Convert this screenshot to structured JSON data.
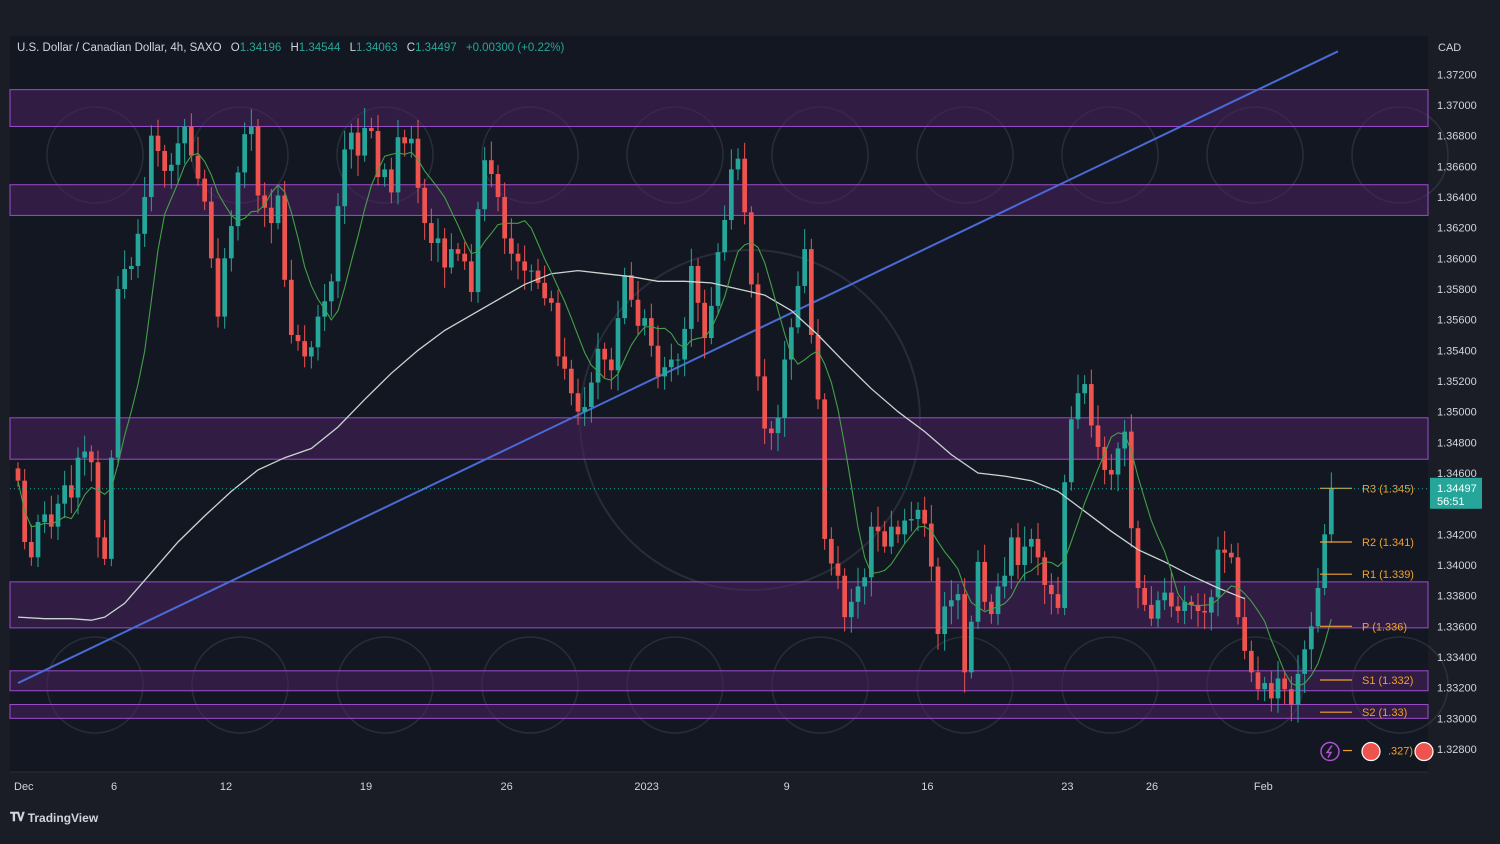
{
  "header": {
    "symbol": "U.S. Dollar / Canadian Dollar, 4h, SAXO",
    "o_label": "O",
    "o": "1.34196",
    "h_label": "H",
    "h": "1.34544",
    "l_label": "L",
    "l": "1.34063",
    "c_label": "C",
    "c": "1.34497",
    "change": "+0.00300 (+0.22%)"
  },
  "brand": "TradingView",
  "currency": "CAD",
  "price_tag": {
    "price": "1.34497",
    "countdown": "56:51"
  },
  "colors": {
    "background": "#1a1d26",
    "up": "#26a69a",
    "down": "#ef5350",
    "zone_fill": "#4a2060",
    "zone_stroke": "#9c4dcc",
    "trendline": "#4a6bd6",
    "ma_fast": "#43a047",
    "ma_slow": "#c8d6cf",
    "pivot": "#f0a030"
  },
  "chart_data": {
    "type": "candlestick",
    "title": "U.S. Dollar / Canadian Dollar, 4h, SAXO",
    "ylim": [
      1.3265,
      1.3745
    ],
    "y_ticks": [
      "1.37200",
      "1.37000",
      "1.36800",
      "1.36600",
      "1.36400",
      "1.36200",
      "1.36000",
      "1.35800",
      "1.35600",
      "1.35400",
      "1.35200",
      "1.35000",
      "1.34800",
      "1.34600",
      "1.34200",
      "1.34000",
      "1.33800",
      "1.33600",
      "1.33400",
      "1.33200",
      "1.33000",
      "1.32800"
    ],
    "x_ticks": [
      {
        "label": "Dec",
        "x": 0
      },
      {
        "label": "6",
        "x": 14.4
      },
      {
        "label": "12",
        "x": 31.2
      },
      {
        "label": "19",
        "x": 52.2
      },
      {
        "label": "26",
        "x": 73.3
      },
      {
        "label": "2023",
        "x": 94.3
      },
      {
        "label": "9",
        "x": 115.3
      },
      {
        "label": "16",
        "x": 136.4
      },
      {
        "label": "23",
        "x": 157.4
      },
      {
        "label": "26",
        "x": 170.1
      },
      {
        "label": "Feb",
        "x": 186.8
      }
    ],
    "x_range": [
      0,
      198
    ],
    "closes": [
      1.3455,
      1.3415,
      1.3405,
      1.3428,
      1.3433,
      1.3425,
      1.344,
      1.3452,
      1.3444,
      1.347,
      1.3474,
      1.3467,
      1.3418,
      1.3404,
      1.347,
      1.358,
      1.3593,
      1.3595,
      1.3616,
      1.364,
      1.368,
      1.367,
      1.3657,
      1.3661,
      1.3675,
      1.3686,
      1.3667,
      1.3652,
      1.3637,
      1.36,
      1.3562,
      1.36,
      1.3621,
      1.3656,
      1.3681,
      1.3686,
      1.3641,
      1.3633,
      1.3623,
      1.3641,
      1.3586,
      1.355,
      1.3546,
      1.3536,
      1.3542,
      1.3562,
      1.3572,
      1.3585,
      1.3634,
      1.3671,
      1.3682,
      1.3667,
      1.3685,
      1.3683,
      1.3653,
      1.3658,
      1.3643,
      1.3679,
      1.3675,
      1.3678,
      1.3646,
      1.3623,
      1.361,
      1.3613,
      1.3594,
      1.3606,
      1.3603,
      1.3598,
      1.3578,
      1.3632,
      1.3664,
      1.3655,
      1.364,
      1.3613,
      1.3603,
      1.3598,
      1.3592,
      1.3592,
      1.3584,
      1.3574,
      1.3571,
      1.3536,
      1.3528,
      1.3512,
      1.35,
      1.3503,
      1.3519,
      1.3541,
      1.3534,
      1.3527,
      1.3561,
      1.3589,
      1.3573,
      1.3556,
      1.3561,
      1.3543,
      1.3523,
      1.3529,
      1.3534,
      1.3534,
      1.3554,
      1.3595,
      1.3571,
      1.3548,
      1.3569,
      1.3604,
      1.3625,
      1.3658,
      1.3665,
      1.363,
      1.3583,
      1.3523,
      1.3489,
      1.3486,
      1.3496,
      1.3534,
      1.3555,
      1.3582,
      1.3606,
      1.355,
      1.3508,
      1.3417,
      1.3401,
      1.3393,
      1.3366,
      1.3376,
      1.3386,
      1.3392,
      1.3425,
      1.3422,
      1.3412,
      1.3425,
      1.342,
      1.3429,
      1.343,
      1.3436,
      1.3427,
      1.3399,
      1.3355,
      1.3373,
      1.3377,
      1.3381,
      1.333,
      1.3363,
      1.3402,
      1.3376,
      1.3368,
      1.3386,
      1.3393,
      1.3418,
      1.34,
      1.3412,
      1.3417,
      1.3405,
      1.3387,
      1.3381,
      1.3372,
      1.3454,
      1.3495,
      1.3512,
      1.3518,
      1.3491,
      1.3477,
      1.3462,
      1.3459,
      1.3476,
      1.3487,
      1.3424,
      1.3385,
      1.3374,
      1.3365,
      1.3377,
      1.3382,
      1.3373,
      1.337,
      1.3376,
      1.3374,
      1.337,
      1.3369,
      1.3379,
      1.341,
      1.3408,
      1.3405,
      1.3366,
      1.3344,
      1.333,
      1.3319,
      1.3323,
      1.3313,
      1.3326,
      1.3319,
      1.3309,
      1.3329,
      1.3345,
      1.336,
      1.3385,
      1.342,
      1.345
    ],
    "zones": [
      [
        1.3686,
        1.371
      ],
      [
        1.3628,
        1.3648
      ],
      [
        1.3469,
        1.3496
      ],
      [
        1.3359,
        1.3389
      ],
      [
        1.3318,
        1.3331
      ],
      [
        1.33,
        1.3309
      ]
    ],
    "trendline": {
      "from": [
        0,
        1.3323
      ],
      "to": [
        198,
        1.3735
      ]
    },
    "ma_slow": [
      [
        0,
        1.3366
      ],
      [
        4,
        1.3365
      ],
      [
        8,
        1.3365
      ],
      [
        11,
        1.3364
      ],
      [
        13,
        1.3366
      ],
      [
        16,
        1.3375
      ],
      [
        20,
        1.3395
      ],
      [
        24,
        1.3415
      ],
      [
        28,
        1.3432
      ],
      [
        32,
        1.3448
      ],
      [
        36,
        1.3462
      ],
      [
        40,
        1.347
      ],
      [
        44,
        1.3476
      ],
      [
        48,
        1.349
      ],
      [
        52,
        1.3508
      ],
      [
        56,
        1.3525
      ],
      [
        60,
        1.354
      ],
      [
        64,
        1.3553
      ],
      [
        68,
        1.3563
      ],
      [
        72,
        1.3573
      ],
      [
        76,
        1.3583
      ],
      [
        80,
        1.359
      ],
      [
        84,
        1.3592
      ],
      [
        88,
        1.359
      ],
      [
        92,
        1.3588
      ],
      [
        96,
        1.3585
      ],
      [
        100,
        1.3585
      ],
      [
        104,
        1.3584
      ],
      [
        108,
        1.358
      ],
      [
        112,
        1.3576
      ],
      [
        116,
        1.3566
      ],
      [
        120,
        1.355
      ],
      [
        124,
        1.3532
      ],
      [
        128,
        1.3515
      ],
      [
        132,
        1.35
      ],
      [
        136,
        1.3487
      ],
      [
        140,
        1.3472
      ],
      [
        144,
        1.346
      ],
      [
        148,
        1.3458
      ],
      [
        152,
        1.3455
      ],
      [
        156,
        1.3448
      ],
      [
        160,
        1.3435
      ],
      [
        164,
        1.3422
      ],
      [
        168,
        1.341
      ],
      [
        172,
        1.3402
      ],
      [
        176,
        1.3393
      ],
      [
        180,
        1.3385
      ],
      [
        184,
        1.3378
      ]
    ],
    "pivots": [
      {
        "label": "R3 (1.345)",
        "value": 1.345
      },
      {
        "label": "R2 (1.341)",
        "value": 1.3415
      },
      {
        "label": "R1 (1.339)",
        "value": 1.3394
      },
      {
        "label": "P (1.336)",
        "value": 1.336
      },
      {
        "label": "S1 (1.332)",
        "value": 1.3325
      },
      {
        "label": "S2 (1.33)",
        "value": 1.3304
      },
      {
        "label": ".327)",
        "value": 1.3279
      }
    ]
  }
}
